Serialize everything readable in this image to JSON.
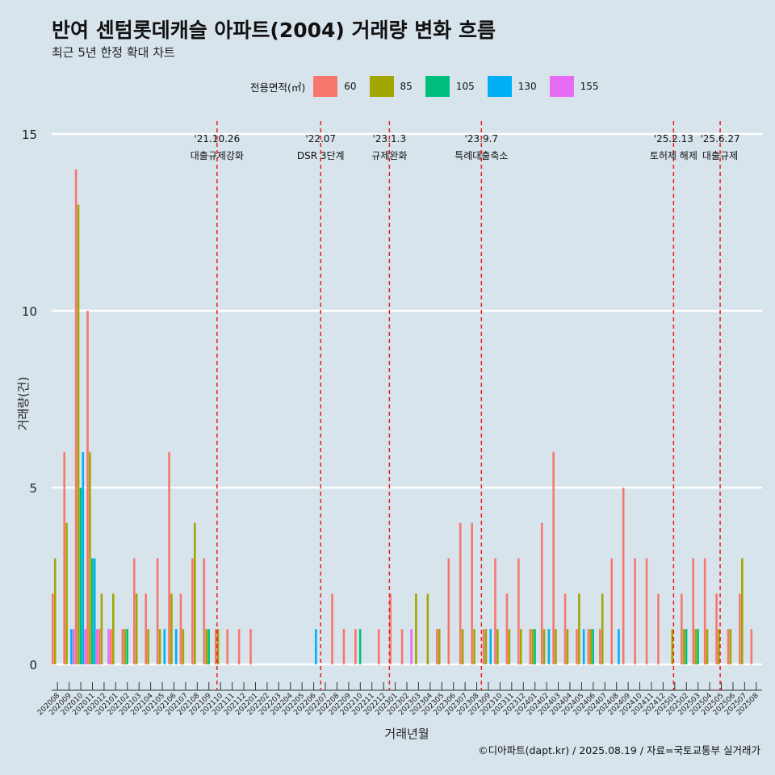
{
  "chart_data": {
    "type": "bar",
    "title": "반여 센텀롯데캐슬 아파트(2004) 거래량 변화 흐름",
    "subtitle": "최근 5년 한정 확대 차트",
    "xlabel": "거래년월",
    "ylabel": "거래량(건)",
    "ylim": [
      0,
      15
    ],
    "yticks": [
      0,
      5,
      10,
      15
    ],
    "legend_title": "전용면적(㎡)",
    "legend": [
      {
        "name": "60",
        "color": "#f8766d"
      },
      {
        "name": "85",
        "color": "#a3a500"
      },
      {
        "name": "105",
        "color": "#00bf7d"
      },
      {
        "name": "130",
        "color": "#00b0f6"
      },
      {
        "name": "155",
        "color": "#e76bf3"
      }
    ],
    "categories": [
      "202008",
      "202009",
      "202010",
      "202011",
      "202012",
      "202101",
      "202102",
      "202103",
      "202104",
      "202105",
      "202106",
      "202107",
      "202108",
      "202109",
      "202110",
      "202111",
      "202112",
      "202201",
      "202202",
      "202203",
      "202204",
      "202205",
      "202206",
      "202207",
      "202208",
      "202209",
      "202210",
      "202211",
      "202212",
      "202301",
      "202302",
      "202303",
      "202304",
      "202305",
      "202306",
      "202307",
      "202308",
      "202309",
      "202310",
      "202311",
      "202312",
      "202401",
      "202402",
      "202403",
      "202404",
      "202405",
      "202406",
      "202407",
      "202408",
      "202409",
      "202410",
      "202411",
      "202412",
      "202501",
      "202502",
      "202503",
      "202504",
      "202505",
      "202506",
      "202507",
      "202508"
    ],
    "series": [
      {
        "name": "60",
        "values": [
          2,
          6,
          14,
          10,
          1,
          1,
          1,
          3,
          2,
          3,
          6,
          2,
          3,
          3,
          1,
          1,
          1,
          1,
          0,
          0,
          0,
          0,
          0,
          0,
          2,
          1,
          1,
          0,
          1,
          2,
          1,
          0,
          0,
          1,
          3,
          4,
          4,
          1,
          3,
          2,
          3,
          1,
          4,
          6,
          2,
          1,
          1,
          1,
          3,
          5,
          3,
          3,
          2,
          0,
          2,
          3,
          3,
          2,
          1,
          2,
          1
        ]
      },
      {
        "name": "85",
        "values": [
          3,
          4,
          13,
          6,
          2,
          2,
          1,
          2,
          1,
          1,
          2,
          1,
          4,
          1,
          1,
          0,
          0,
          0,
          0,
          0,
          0,
          0,
          0,
          0,
          0,
          0,
          0,
          0,
          0,
          0,
          0,
          2,
          2,
          1,
          0,
          1,
          1,
          1,
          1,
          1,
          1,
          1,
          1,
          1,
          1,
          2,
          1,
          2,
          0,
          0,
          0,
          0,
          0,
          1,
          1,
          1,
          1,
          1,
          1,
          3,
          0
        ]
      },
      {
        "name": "105",
        "values": [
          0,
          0,
          5,
          3,
          0,
          0,
          1,
          0,
          0,
          0,
          0,
          0,
          0,
          1,
          0,
          0,
          0,
          0,
          0,
          0,
          0,
          0,
          0,
          0,
          0,
          0,
          1,
          0,
          0,
          0,
          0,
          0,
          0,
          0,
          0,
          0,
          0,
          0,
          0,
          0,
          0,
          1,
          0,
          0,
          0,
          0,
          1,
          0,
          0,
          0,
          0,
          0,
          0,
          0,
          1,
          1,
          0,
          0,
          0,
          0,
          0
        ]
      },
      {
        "name": "130",
        "values": [
          0,
          1,
          6,
          3,
          0,
          0,
          0,
          0,
          0,
          1,
          1,
          0,
          0,
          0,
          0,
          0,
          0,
          0,
          0,
          0,
          0,
          0,
          1,
          0,
          0,
          0,
          0,
          0,
          0,
          0,
          0,
          0,
          0,
          0,
          0,
          0,
          0,
          1,
          0,
          0,
          0,
          0,
          1,
          0,
          0,
          1,
          0,
          0,
          1,
          0,
          0,
          0,
          0,
          0,
          0,
          0,
          0,
          0,
          0,
          0,
          0
        ]
      },
      {
        "name": "155",
        "values": [
          0,
          1,
          1,
          1,
          1,
          0,
          0,
          0,
          0,
          0,
          0,
          0,
          0,
          0,
          0,
          0,
          0,
          0,
          0,
          0,
          0,
          0,
          0,
          0,
          0,
          0,
          0,
          0,
          0,
          0,
          1,
          0,
          0,
          0,
          0,
          0,
          0,
          0,
          0,
          0,
          0,
          0,
          0,
          0,
          0,
          0,
          0,
          0,
          0,
          0,
          0,
          0,
          0,
          0,
          0,
          0,
          0,
          0,
          0,
          0,
          0
        ]
      }
    ],
    "events": [
      {
        "index": 14.2,
        "date": "'21.10.26",
        "label": "대출규제강화"
      },
      {
        "index": 23.1,
        "date": "'22.07",
        "label": "DSR 3단계"
      },
      {
        "index": 29.0,
        "date": "'23.1.3",
        "label": "규제완화"
      },
      {
        "index": 36.9,
        "date": "'23.9.7",
        "label": "특례대출축소"
      },
      {
        "index": 53.4,
        "date": "'25.2.13",
        "label": "토허제 해제"
      },
      {
        "index": 57.4,
        "date": "'25.6.27",
        "label": "대출규제"
      }
    ]
  },
  "caption": "©디아파트(dapt.kr) / 2025.08.19 / 자료=국토교통부 실거래가"
}
